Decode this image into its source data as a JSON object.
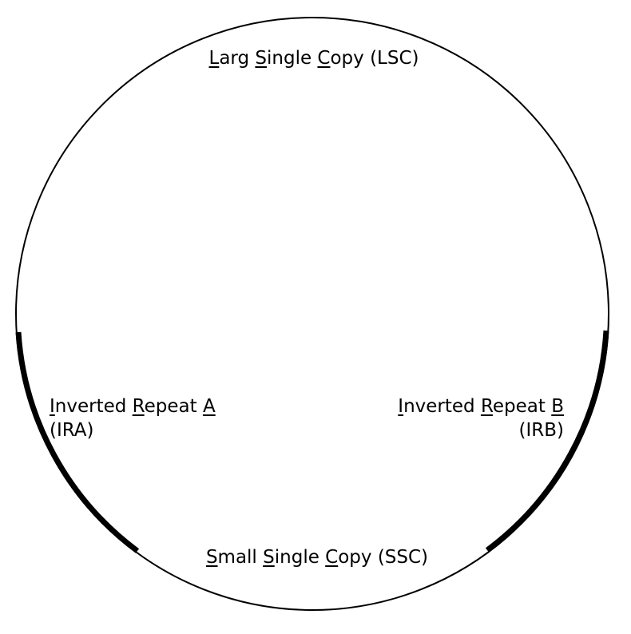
{
  "regions": {
    "lsc": {
      "parts": [
        {
          "text": "L",
          "underline": true
        },
        {
          "text": "arg ",
          "underline": false
        },
        {
          "text": "S",
          "underline": true
        },
        {
          "text": "ingle ",
          "underline": false
        },
        {
          "text": "C",
          "underline": true
        },
        {
          "text": "opy (LSC)",
          "underline": false
        }
      ]
    },
    "ira": {
      "parts": [
        {
          "text": "I",
          "underline": true
        },
        {
          "text": "nverted ",
          "underline": false
        },
        {
          "text": "R",
          "underline": true
        },
        {
          "text": "epeat ",
          "underline": false
        },
        {
          "text": "A",
          "underline": true
        }
      ],
      "abbrev": "(IRA)"
    },
    "irb": {
      "parts": [
        {
          "text": "I",
          "underline": true
        },
        {
          "text": "nverted ",
          "underline": false
        },
        {
          "text": "R",
          "underline": true
        },
        {
          "text": "epeat ",
          "underline": false
        },
        {
          "text": "B",
          "underline": true
        }
      ],
      "abbrev": "(IRB)"
    },
    "ssc": {
      "parts": [
        {
          "text": "S",
          "underline": true
        },
        {
          "text": "mall ",
          "underline": false
        },
        {
          "text": "S",
          "underline": true
        },
        {
          "text": "ingle ",
          "underline": false
        },
        {
          "text": "C",
          "underline": true
        },
        {
          "text": "opy (SSC)",
          "underline": false
        }
      ]
    }
  },
  "colors": {
    "stroke": "#000000",
    "background": "#ffffff"
  }
}
